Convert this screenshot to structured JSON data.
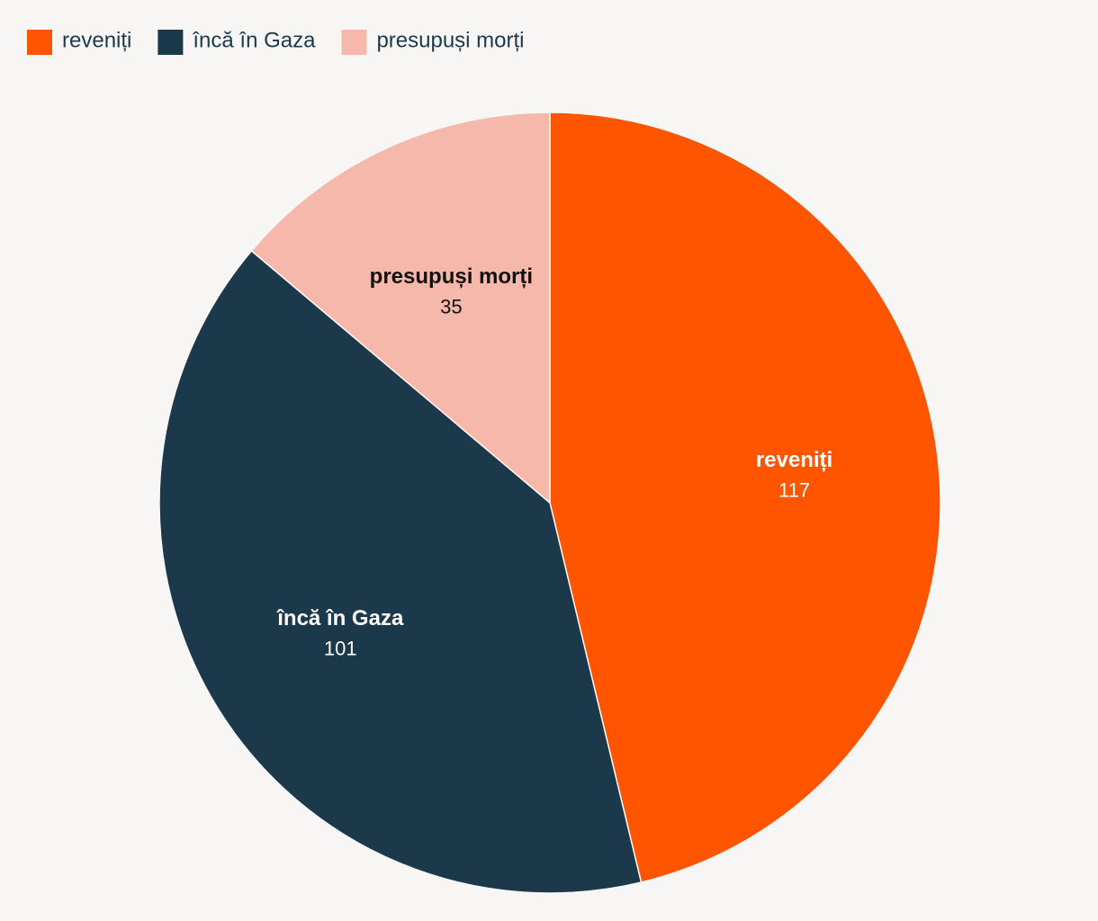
{
  "chart_data": {
    "type": "pie",
    "categories": [
      "reveniți",
      "încă în Gaza",
      "presupuși morți"
    ],
    "values": [
      117,
      101,
      35
    ],
    "colors": [
      "#ff5500",
      "#1c394b",
      "#f5b8aa"
    ]
  }
}
